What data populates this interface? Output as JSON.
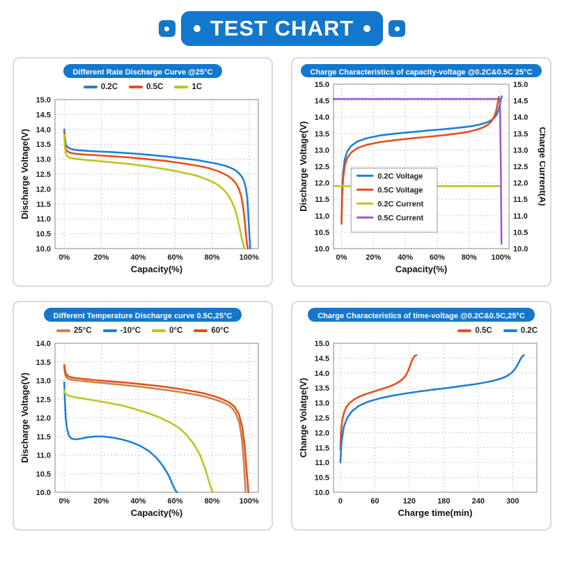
{
  "header": {
    "title": "TEST CHART"
  },
  "chart_data": [
    {
      "type": "line",
      "title": "Different Rate Discharge Curve @25°C",
      "xlabel": "Capacity(%)",
      "ylabel": "Discharge Voltage(V)",
      "xlim": [
        -5,
        105
      ],
      "ylim": [
        10,
        15
      ],
      "ytick_step": 0.5,
      "xticks": {
        "values": [
          0,
          20,
          40,
          60,
          80,
          100
        ],
        "labels": [
          "0%",
          "20%",
          "40%",
          "60%",
          "80%",
          "100%"
        ]
      },
      "grid": true,
      "legend_position": "top-center",
      "series": [
        {
          "name": "0.2C",
          "color": "#1e7fd8",
          "x": [
            0,
            0.3,
            0.8,
            1.5,
            3,
            5,
            8,
            12,
            18,
            25,
            35,
            45,
            55,
            65,
            72,
            78,
            83,
            87,
            90,
            92.5,
            94.5,
            96,
            97.2,
            98.2,
            99,
            99.6,
            100.2,
            100.6
          ],
          "y": [
            14.0,
            13.75,
            13.5,
            13.42,
            13.36,
            13.32,
            13.3,
            13.28,
            13.26,
            13.24,
            13.2,
            13.15,
            13.09,
            13.02,
            12.97,
            12.9,
            12.84,
            12.78,
            12.71,
            12.63,
            12.53,
            12.42,
            12.27,
            12.05,
            11.7,
            11.1,
            10.4,
            10.0
          ]
        },
        {
          "name": "0.5C",
          "color": "#e84e1b",
          "x": [
            0,
            0.3,
            0.8,
            1.5,
            3,
            5,
            8,
            12,
            18,
            25,
            35,
            45,
            55,
            65,
            72,
            78,
            83,
            86,
            89,
            91,
            93,
            94.5,
            95.8,
            96.8,
            97.6,
            98.3,
            98.9,
            99.3
          ],
          "y": [
            13.92,
            13.6,
            13.35,
            13.27,
            13.22,
            13.19,
            13.17,
            13.15,
            13.13,
            13.1,
            13.06,
            13.0,
            12.94,
            12.85,
            12.78,
            12.7,
            12.6,
            12.52,
            12.42,
            12.32,
            12.18,
            12.0,
            11.75,
            11.4,
            10.95,
            10.5,
            10.15,
            10.0
          ]
        },
        {
          "name": "1C",
          "color": "#bec41f",
          "x": [
            0,
            0.3,
            0.8,
            1.5,
            3,
            5,
            8,
            12,
            18,
            25,
            35,
            45,
            55,
            62,
            68,
            73,
            78,
            82,
            85,
            88,
            90.5,
            92.5,
            94,
            95.2,
            96.2,
            97,
            97.6
          ],
          "y": [
            13.82,
            13.45,
            13.2,
            13.1,
            13.05,
            13.02,
            13.0,
            12.97,
            12.94,
            12.9,
            12.84,
            12.76,
            12.66,
            12.58,
            12.5,
            12.42,
            12.3,
            12.18,
            12.05,
            11.85,
            11.6,
            11.3,
            10.95,
            10.6,
            10.3,
            10.1,
            10.0
          ]
        }
      ]
    },
    {
      "type": "line",
      "title": "Charge Characteristics of capacity-voltage @0.2C&0.5C  25°C",
      "xlabel": "Capacity(%)",
      "ylabel": "Discharge Voltage(V)",
      "ylabel2": "Charge Current(A)",
      "xlim": [
        -5,
        105
      ],
      "ylim": [
        10,
        15
      ],
      "ytick_step": 0.5,
      "xticks": {
        "values": [
          0,
          20,
          40,
          60,
          80,
          100
        ],
        "labels": [
          "0%",
          "20%",
          "40%",
          "60%",
          "80%",
          "100%"
        ]
      },
      "grid": true,
      "legend_position": "inside",
      "legend_box": {
        "x": 6,
        "y": 12.45,
        "x2": 60,
        "y2": 10.5
      },
      "series": [
        {
          "name": "0.2C Voltage",
          "color": "#1e7fd8",
          "x": [
            0,
            0.4,
            1,
            2,
            3.5,
            6,
            10,
            16,
            24,
            34,
            45,
            56,
            66,
            74,
            81,
            86,
            90,
            93,
            95.5,
            97.2,
            98.5,
            99.4,
            100,
            100.5
          ],
          "y": [
            10.9,
            11.8,
            12.3,
            12.7,
            12.95,
            13.12,
            13.26,
            13.36,
            13.44,
            13.5,
            13.55,
            13.6,
            13.64,
            13.68,
            13.72,
            13.77,
            13.82,
            13.88,
            13.96,
            14.07,
            14.22,
            14.4,
            14.55,
            14.63
          ]
        },
        {
          "name": "0.5C Voltage",
          "color": "#e84e1b",
          "x": [
            0,
            0.4,
            1,
            2,
            3.5,
            6,
            10,
            16,
            24,
            34,
            45,
            56,
            66,
            74,
            80,
            85,
            88.5,
            91.5,
            93.8,
            95.6,
            97,
            98,
            98.7
          ],
          "y": [
            10.75,
            11.6,
            12.1,
            12.5,
            12.75,
            12.92,
            13.06,
            13.16,
            13.24,
            13.3,
            13.36,
            13.41,
            13.46,
            13.51,
            13.56,
            13.62,
            13.68,
            13.76,
            13.86,
            14.0,
            14.2,
            14.45,
            14.62
          ]
        },
        {
          "name": "0.2C Current",
          "color": "#bec41f",
          "x": [
            -5,
            100.3
          ],
          "y": [
            11.9,
            11.9
          ]
        },
        {
          "name": "0.5C Current",
          "color": "#9a5cd0",
          "x": [
            -5,
            99.3,
            99.9,
            100.3
          ],
          "y": [
            14.55,
            14.55,
            12.5,
            10.15
          ]
        }
      ]
    },
    {
      "type": "line",
      "title": "Different Temperature Discharge curve 0.5C,25°C",
      "xlabel": "Capacity(%)",
      "ylabel": "Discharge Voltage(V)",
      "xlim": [
        -5,
        105
      ],
      "ylim": [
        10,
        14
      ],
      "ytick_step": 0.5,
      "xticks": {
        "values": [
          0,
          20,
          40,
          60,
          80,
          100
        ],
        "labels": [
          "0%",
          "20%",
          "40%",
          "60%",
          "80%",
          "100%"
        ]
      },
      "grid": true,
      "legend_position": "top-center",
      "series": [
        {
          "name": "25°C",
          "color": "#c4874a",
          "x": [
            0,
            0.4,
            1,
            2,
            4,
            7,
            11,
            17,
            24,
            32,
            40,
            48,
            56,
            63,
            70,
            76,
            81,
            85,
            88.5,
            91,
            93,
            94.8,
            96.2,
            97.3,
            98.1
          ],
          "y": [
            13.35,
            13.2,
            13.1,
            13.05,
            13.02,
            13.0,
            12.98,
            12.95,
            12.92,
            12.88,
            12.84,
            12.79,
            12.74,
            12.69,
            12.63,
            12.57,
            12.5,
            12.43,
            12.35,
            12.25,
            12.1,
            11.85,
            11.4,
            10.7,
            10.0
          ]
        },
        {
          "name": "-10°C",
          "color": "#1e7fd8",
          "x": [
            0,
            0.3,
            0.8,
            1.5,
            2.5,
            4,
            6,
            9,
            13,
            17,
            21,
            26,
            31,
            36,
            41,
            46,
            50,
            53.5,
            56.5,
            58.5,
            60,
            61
          ],
          "y": [
            12.95,
            12.5,
            12.0,
            11.7,
            11.52,
            11.44,
            11.42,
            11.44,
            11.48,
            11.5,
            11.5,
            11.47,
            11.42,
            11.35,
            11.25,
            11.1,
            10.92,
            10.7,
            10.45,
            10.22,
            10.06,
            10.0
          ]
        },
        {
          "name": "0°C",
          "color": "#bec41f",
          "x": [
            0,
            0.4,
            1,
            2,
            4,
            7,
            11,
            17,
            24,
            31,
            38,
            45,
            51,
            57,
            62,
            66,
            70,
            73.5,
            76.5,
            78.8,
            80.3
          ],
          "y": [
            12.75,
            12.68,
            12.63,
            12.6,
            12.57,
            12.54,
            12.51,
            12.46,
            12.4,
            12.33,
            12.24,
            12.13,
            12.02,
            11.88,
            11.73,
            11.55,
            11.3,
            11.0,
            10.6,
            10.2,
            10.0
          ]
        },
        {
          "name": "60°C",
          "color": "#e84e1b",
          "x": [
            0,
            0.4,
            1,
            2,
            4,
            7,
            11,
            17,
            24,
            32,
            40,
            48,
            56,
            63,
            70,
            76,
            81,
            85,
            89,
            92,
            94.5,
            96.3,
            97.7,
            98.8,
            99.6
          ],
          "y": [
            13.42,
            13.28,
            13.18,
            13.12,
            13.08,
            13.06,
            13.04,
            13.01,
            12.98,
            12.95,
            12.91,
            12.87,
            12.82,
            12.77,
            12.71,
            12.65,
            12.58,
            12.51,
            12.42,
            12.3,
            12.1,
            11.75,
            11.2,
            10.5,
            10.0
          ]
        }
      ]
    },
    {
      "type": "line",
      "title": "Charge Characteristics of time-voltage @0.2C&0.5C,25°C",
      "xlabel": "Charge time(min)",
      "ylabel": "Change Volatge(V)",
      "xlim": [
        -12,
        342
      ],
      "ylim": [
        10,
        15
      ],
      "ytick_step": 0.5,
      "xticks": {
        "values": [
          0,
          60,
          120,
          180,
          240,
          300
        ],
        "labels": [
          "0",
          "60",
          "120",
          "180",
          "240",
          "300"
        ]
      },
      "grid": true,
      "legend_position": "top-right",
      "series": [
        {
          "name": "0.5C",
          "color": "#e84e1b",
          "x": [
            0,
            1,
            3,
            6,
            10,
            16,
            24,
            34,
            45,
            56,
            66,
            76,
            85,
            93,
            100,
            106,
            111,
            115,
            118.5,
            121.5,
            124,
            126.5,
            129,
            132
          ],
          "y": [
            11.45,
            12.0,
            12.4,
            12.65,
            12.85,
            13.0,
            13.12,
            13.22,
            13.3,
            13.37,
            13.43,
            13.49,
            13.55,
            13.61,
            13.68,
            13.76,
            13.85,
            13.96,
            14.1,
            14.26,
            14.4,
            14.5,
            14.57,
            14.6
          ]
        },
        {
          "name": "0.2C",
          "color": "#1e7fd8",
          "x": [
            0,
            2,
            6,
            12,
            20,
            32,
            48,
            68,
            90,
            115,
            140,
            165,
            190,
            212,
            232,
            250,
            266,
            279,
            289,
            297,
            303.5,
            308.5,
            312.5,
            316,
            319.5
          ],
          "y": [
            11.0,
            11.7,
            12.2,
            12.5,
            12.72,
            12.9,
            13.04,
            13.15,
            13.24,
            13.32,
            13.39,
            13.45,
            13.51,
            13.57,
            13.62,
            13.68,
            13.74,
            13.81,
            13.89,
            13.99,
            14.12,
            14.28,
            14.43,
            14.55,
            14.6
          ]
        }
      ]
    }
  ]
}
